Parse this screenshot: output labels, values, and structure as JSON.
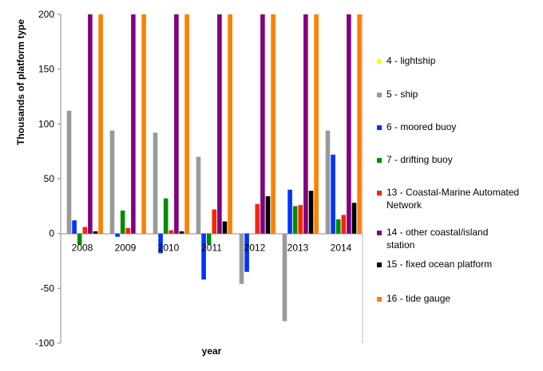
{
  "chart_data": {
    "type": "bar",
    "title": "",
    "xlabel": "year",
    "ylabel": "Thousands of platform type",
    "ylim": [
      -100,
      200
    ],
    "yticks": [
      -100,
      -50,
      0,
      50,
      100,
      150,
      200
    ],
    "grid": false,
    "legend_position": "right",
    "categories": [
      "2008",
      "2009",
      "2010",
      "2011",
      "2012",
      "2013",
      "2014"
    ],
    "series": [
      {
        "name": "4 - lightship",
        "color": "#FFFF00",
        "values": [
          0,
          0,
          0,
          0,
          0,
          0,
          0
        ]
      },
      {
        "name": "5 - ship",
        "color": "#999999",
        "values": [
          112,
          94,
          92,
          70,
          -46,
          -80,
          94
        ]
      },
      {
        "name": "6 - moored buoy",
        "color": "#0033FF",
        "values": [
          12,
          -3,
          -18,
          -42,
          -35,
          40,
          72
        ]
      },
      {
        "name": "7 - drifting buoy",
        "color": "#008C00",
        "values": [
          -10,
          21,
          32,
          -10,
          0,
          25,
          13
        ]
      },
      {
        "name": "13 - Coastal-Marine Automated Network",
        "color": "#FF2200",
        "values": [
          6,
          5,
          3,
          22,
          27,
          26,
          17
        ]
      },
      {
        "name": "14 - other coastal/island station",
        "color": "#800080",
        "values": [
          200,
          200,
          200,
          200,
          200,
          200,
          200
        ]
      },
      {
        "name": "15 - fixed ocean platform",
        "color": "#000000",
        "values": [
          2,
          0,
          2,
          11,
          34,
          39,
          28
        ]
      },
      {
        "name": "16 - tide gauge",
        "color": "#FF8000",
        "values": [
          200,
          200,
          200,
          200,
          200,
          200,
          200
        ]
      }
    ]
  }
}
